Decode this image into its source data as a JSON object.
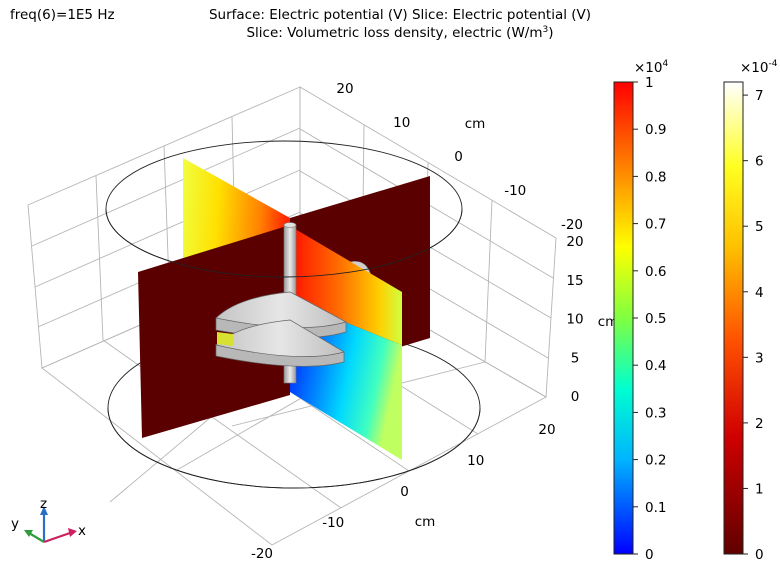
{
  "header": {
    "parameter_label": "freq(6)=1E5 Hz",
    "title_line1": "Surface: Electric potential (V)  Slice: Electric potential (V)",
    "title_line2_main": "Slice: Volumetric loss density, electric (W/m",
    "title_line2_sup": "3",
    "title_line2_end": ")"
  },
  "chart_data": {
    "type": "3d-surface-slice",
    "axes": {
      "x": {
        "ticks": [
          -20,
          -10,
          0,
          10,
          20
        ],
        "unit": "cm"
      },
      "y": {
        "ticks": [
          -20,
          -10,
          0,
          10,
          20
        ],
        "unit": "cm"
      },
      "z": {
        "ticks": [
          0,
          5,
          10,
          15,
          20
        ],
        "unit": "cm"
      }
    },
    "colorbars": [
      {
        "name": "Electric potential",
        "colormap": "rainbow",
        "multiplier_base": "×10",
        "multiplier_exp": "4",
        "ticks": [
          0,
          0.1,
          0.2,
          0.3,
          0.4,
          0.5,
          0.6,
          0.7,
          0.8,
          0.9,
          1
        ],
        "range": [
          0,
          1
        ]
      },
      {
        "name": "Volumetric loss density, electric",
        "colormap": "thermal",
        "multiplier_base": "×10",
        "multiplier_exp": "-4",
        "ticks": [
          0,
          1,
          2,
          3,
          4,
          5,
          6,
          7
        ],
        "range": [
          0,
          7.2
        ]
      }
    ],
    "grid": true
  },
  "triad": {
    "x": "x",
    "y": "y",
    "z": "z"
  },
  "colors": {
    "dark_slice": "#5a0000",
    "background": "#ffffff",
    "grid": "#b0b0b0"
  }
}
